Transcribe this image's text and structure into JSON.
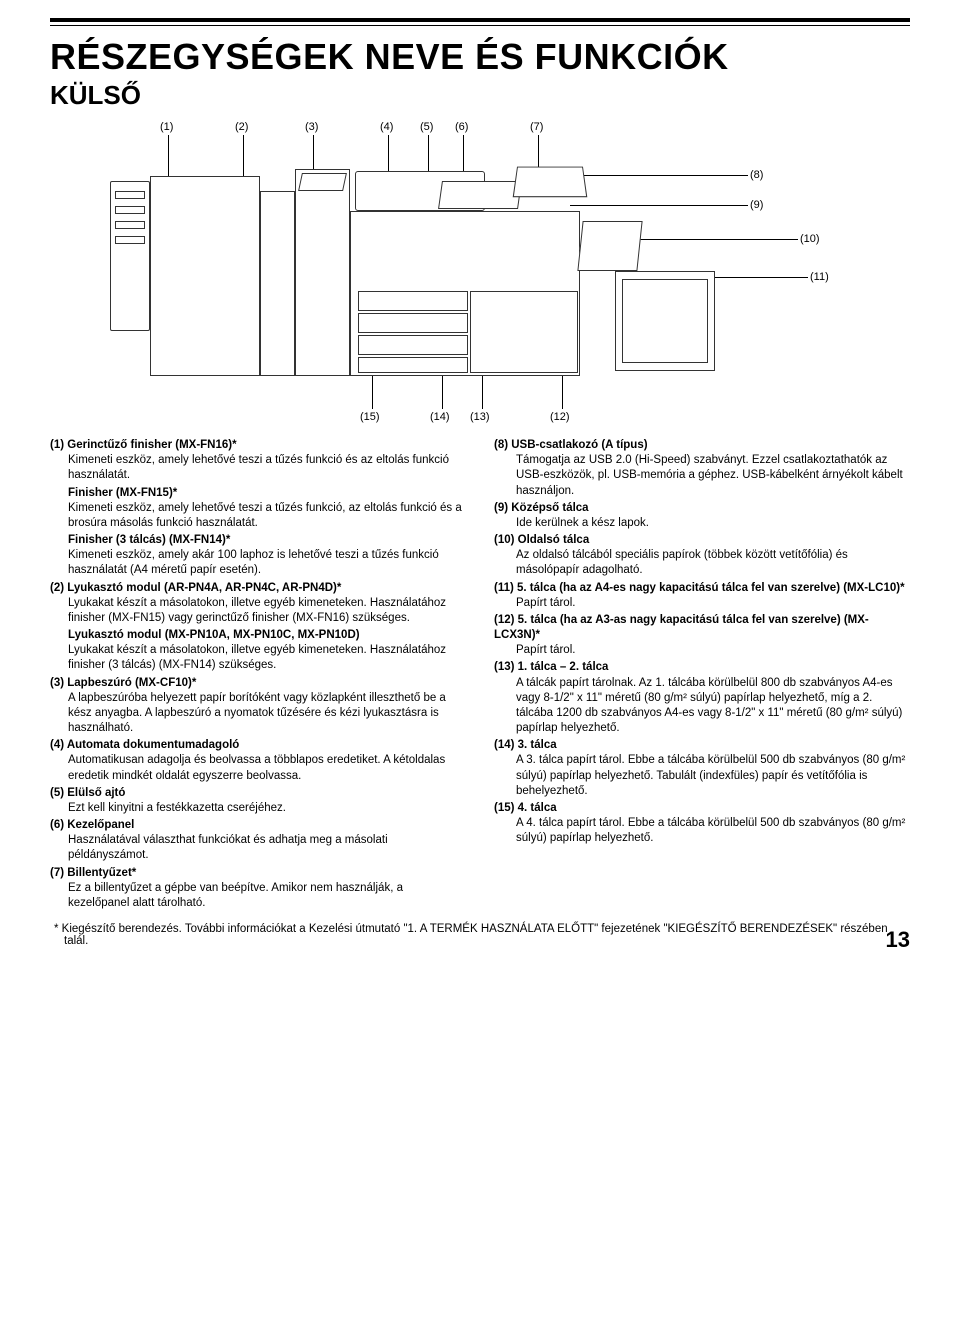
{
  "rules": {
    "thick_color": "#000000",
    "thin_color": "#000000"
  },
  "title": "RÉSZEGYSÉGEK NEVE ÉS FUNKCIÓK",
  "subtitle": "KÜLSŐ",
  "callouts_top": [
    "(1)",
    "(2)",
    "(3)",
    "(4)",
    "(5)",
    "(6)",
    "(7)"
  ],
  "callouts_right": [
    "(8)",
    "(9)",
    "(10)",
    "(11)"
  ],
  "callouts_bottom": [
    "(15)",
    "(14)",
    "(13)",
    "(12)"
  ],
  "left_items": [
    {
      "num": "(1)",
      "head": "Gerinctűző finisher (MX-FN16)*",
      "body": "Kimeneti eszköz, amely lehetővé teszi a tűzés funkció és az eltolás funkció használatát.",
      "subs": [
        {
          "head": "Finisher (MX-FN15)*",
          "body": "Kimeneti eszköz, amely lehetővé teszi a tűzés funkció, az eltolás funkció és a brosúra másolás funkció használatát."
        },
        {
          "head": "Finisher (3 tálcás) (MX-FN14)*",
          "body": "Kimeneti eszköz, amely akár 100 laphoz is lehetővé teszi a tűzés funkció használatát (A4 méretű papír esetén)."
        }
      ]
    },
    {
      "num": "(2)",
      "head": "Lyukasztó modul (AR-PN4A, AR-PN4C, AR-PN4D)*",
      "body": "Lyukakat készít a másolatokon, illetve egyéb kimeneteken. Használatához finisher (MX-FN15) vagy gerinctűző finisher (MX-FN16) szükséges.",
      "subs": [
        {
          "head": "Lyukasztó modul (MX-PN10A, MX-PN10C, MX-PN10D)",
          "body": "Lyukakat készít a másolatokon, illetve egyéb kimeneteken. Használatához finisher (3 tálcás) (MX-FN14) szükséges."
        }
      ]
    },
    {
      "num": "(3)",
      "head": "Lapbeszúró (MX-CF10)*",
      "body": "A lapbeszúróba helyezett papír borítóként vagy közlapként illeszthető be a kész anyagba. A lapbeszúró a nyomatok tűzésére és kézi lyukasztásra is használható."
    },
    {
      "num": "(4)",
      "head": "Automata dokumentumadagoló",
      "body": "Automatikusan adagolja és beolvassa a többlapos eredetiket. A kétoldalas eredetik mindkét oldalát egyszerre beolvassa."
    },
    {
      "num": "(5)",
      "head": "Elülső ajtó",
      "body": "Ezt kell kinyitni a festékkazetta cseréjéhez."
    },
    {
      "num": "(6)",
      "head": "Kezelőpanel",
      "body": "Használatával választhat funkciókat és adhatja meg a másolati példányszámot."
    },
    {
      "num": "(7)",
      "head": "Billentyűzet*",
      "body": "Ez a billentyűzet a gépbe van beépítve. Amikor nem használják, a kezelőpanel alatt tárolható."
    }
  ],
  "right_items": [
    {
      "num": "(8)",
      "head": "USB-csatlakozó (A típus)",
      "body": "Támogatja az USB 2.0 (Hi-Speed) szabványt. Ezzel csatlakoztathatók az USB-eszközök, pl. USB-memória a géphez. USB-kábelként árnyékolt kábelt használjon."
    },
    {
      "num": "(9)",
      "head": "Középső tálca",
      "body": "Ide kerülnek a kész lapok."
    },
    {
      "num": "(10)",
      "head": "Oldalsó tálca",
      "body": "Az oldalsó tálcából speciális papírok (többek között vetítőfólia) és másolópapír adagolható."
    },
    {
      "num": "(11)",
      "head": "5. tálca (ha az A4-es nagy kapacitású tálca fel van szerelve) (MX-LC10)*",
      "body": "Papírt tárol."
    },
    {
      "num": "(12)",
      "head": "5. tálca (ha az A3-as nagy kapacitású tálca fel van szerelve) (MX-LCX3N)*",
      "body": "Papírt tárol."
    },
    {
      "num": "(13)",
      "head": "1. tálca – 2. tálca",
      "body": "A tálcák papírt tárolnak. Az 1. tálcába körülbelül 800 db szabványos A4-es vagy 8-1/2\" x 11\" méretű (80 g/m² súlyú) papírlap helyezhető, míg a 2. tálcába 1200 db szabványos A4-es vagy 8-1/2\" x 11\" méretű (80 g/m² súlyú) papírlap helyezhető."
    },
    {
      "num": "(14)",
      "head": "3. tálca",
      "body": "A 3. tálca papírt tárol. Ebbe a tálcába körülbelül 500 db szabványos (80 g/m² súlyú) papírlap helyezhető. Tabulált (indexfüles) papír és vetítőfólia is behelyezhető."
    },
    {
      "num": "(15)",
      "head": "4. tálca",
      "body": "A 4. tálca papírt tárol. Ebbe a tálcába körülbelül 500 db szabványos (80 g/m² súlyú) papírlap helyezhető."
    }
  ],
  "footnote": "*  Kiegészítő berendezés. További információkat a Kezelési útmutató \"1. A TERMÉK HASZNÁLATA ELŐTT\" fejezetének \"KIEGÉSZÍTŐ BERENDEZÉSEK\" részében talál.",
  "page_number": "13"
}
